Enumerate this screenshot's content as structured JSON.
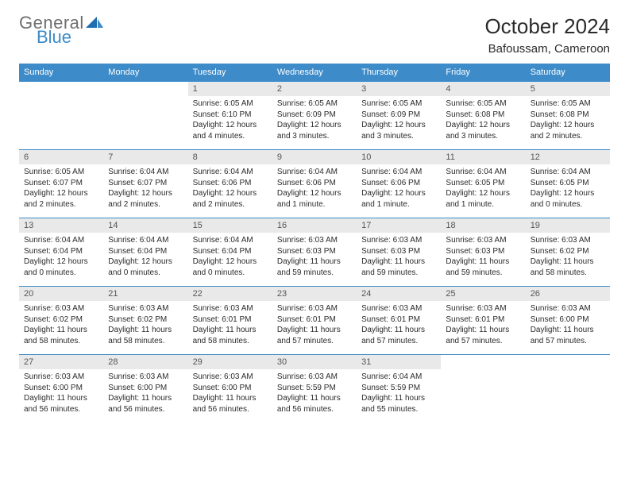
{
  "brand": {
    "word1": "General",
    "word2": "Blue",
    "word1_color": "#6f6f6f",
    "word2_color": "#3d8bc8"
  },
  "title": "October 2024",
  "location": "Bafoussam, Cameroon",
  "colors": {
    "header_bg": "#3d8bc8",
    "header_text": "#ffffff",
    "daynum_bg": "#e9e9e9",
    "daynum_text": "#555555",
    "rule": "#3d8bc8",
    "body_text": "#2b2b2b",
    "page_bg": "#ffffff"
  },
  "day_headers": [
    "Sunday",
    "Monday",
    "Tuesday",
    "Wednesday",
    "Thursday",
    "Friday",
    "Saturday"
  ],
  "weeks": [
    [
      {
        "n": "",
        "lines": []
      },
      {
        "n": "",
        "lines": []
      },
      {
        "n": "1",
        "lines": [
          "Sunrise: 6:05 AM",
          "Sunset: 6:10 PM",
          "Daylight: 12 hours",
          "and 4 minutes."
        ]
      },
      {
        "n": "2",
        "lines": [
          "Sunrise: 6:05 AM",
          "Sunset: 6:09 PM",
          "Daylight: 12 hours",
          "and 3 minutes."
        ]
      },
      {
        "n": "3",
        "lines": [
          "Sunrise: 6:05 AM",
          "Sunset: 6:09 PM",
          "Daylight: 12 hours",
          "and 3 minutes."
        ]
      },
      {
        "n": "4",
        "lines": [
          "Sunrise: 6:05 AM",
          "Sunset: 6:08 PM",
          "Daylight: 12 hours",
          "and 3 minutes."
        ]
      },
      {
        "n": "5",
        "lines": [
          "Sunrise: 6:05 AM",
          "Sunset: 6:08 PM",
          "Daylight: 12 hours",
          "and 2 minutes."
        ]
      }
    ],
    [
      {
        "n": "6",
        "lines": [
          "Sunrise: 6:05 AM",
          "Sunset: 6:07 PM",
          "Daylight: 12 hours",
          "and 2 minutes."
        ]
      },
      {
        "n": "7",
        "lines": [
          "Sunrise: 6:04 AM",
          "Sunset: 6:07 PM",
          "Daylight: 12 hours",
          "and 2 minutes."
        ]
      },
      {
        "n": "8",
        "lines": [
          "Sunrise: 6:04 AM",
          "Sunset: 6:06 PM",
          "Daylight: 12 hours",
          "and 2 minutes."
        ]
      },
      {
        "n": "9",
        "lines": [
          "Sunrise: 6:04 AM",
          "Sunset: 6:06 PM",
          "Daylight: 12 hours",
          "and 1 minute."
        ]
      },
      {
        "n": "10",
        "lines": [
          "Sunrise: 6:04 AM",
          "Sunset: 6:06 PM",
          "Daylight: 12 hours",
          "and 1 minute."
        ]
      },
      {
        "n": "11",
        "lines": [
          "Sunrise: 6:04 AM",
          "Sunset: 6:05 PM",
          "Daylight: 12 hours",
          "and 1 minute."
        ]
      },
      {
        "n": "12",
        "lines": [
          "Sunrise: 6:04 AM",
          "Sunset: 6:05 PM",
          "Daylight: 12 hours",
          "and 0 minutes."
        ]
      }
    ],
    [
      {
        "n": "13",
        "lines": [
          "Sunrise: 6:04 AM",
          "Sunset: 6:04 PM",
          "Daylight: 12 hours",
          "and 0 minutes."
        ]
      },
      {
        "n": "14",
        "lines": [
          "Sunrise: 6:04 AM",
          "Sunset: 6:04 PM",
          "Daylight: 12 hours",
          "and 0 minutes."
        ]
      },
      {
        "n": "15",
        "lines": [
          "Sunrise: 6:04 AM",
          "Sunset: 6:04 PM",
          "Daylight: 12 hours",
          "and 0 minutes."
        ]
      },
      {
        "n": "16",
        "lines": [
          "Sunrise: 6:03 AM",
          "Sunset: 6:03 PM",
          "Daylight: 11 hours",
          "and 59 minutes."
        ]
      },
      {
        "n": "17",
        "lines": [
          "Sunrise: 6:03 AM",
          "Sunset: 6:03 PM",
          "Daylight: 11 hours",
          "and 59 minutes."
        ]
      },
      {
        "n": "18",
        "lines": [
          "Sunrise: 6:03 AM",
          "Sunset: 6:03 PM",
          "Daylight: 11 hours",
          "and 59 minutes."
        ]
      },
      {
        "n": "19",
        "lines": [
          "Sunrise: 6:03 AM",
          "Sunset: 6:02 PM",
          "Daylight: 11 hours",
          "and 58 minutes."
        ]
      }
    ],
    [
      {
        "n": "20",
        "lines": [
          "Sunrise: 6:03 AM",
          "Sunset: 6:02 PM",
          "Daylight: 11 hours",
          "and 58 minutes."
        ]
      },
      {
        "n": "21",
        "lines": [
          "Sunrise: 6:03 AM",
          "Sunset: 6:02 PM",
          "Daylight: 11 hours",
          "and 58 minutes."
        ]
      },
      {
        "n": "22",
        "lines": [
          "Sunrise: 6:03 AM",
          "Sunset: 6:01 PM",
          "Daylight: 11 hours",
          "and 58 minutes."
        ]
      },
      {
        "n": "23",
        "lines": [
          "Sunrise: 6:03 AM",
          "Sunset: 6:01 PM",
          "Daylight: 11 hours",
          "and 57 minutes."
        ]
      },
      {
        "n": "24",
        "lines": [
          "Sunrise: 6:03 AM",
          "Sunset: 6:01 PM",
          "Daylight: 11 hours",
          "and 57 minutes."
        ]
      },
      {
        "n": "25",
        "lines": [
          "Sunrise: 6:03 AM",
          "Sunset: 6:01 PM",
          "Daylight: 11 hours",
          "and 57 minutes."
        ]
      },
      {
        "n": "26",
        "lines": [
          "Sunrise: 6:03 AM",
          "Sunset: 6:00 PM",
          "Daylight: 11 hours",
          "and 57 minutes."
        ]
      }
    ],
    [
      {
        "n": "27",
        "lines": [
          "Sunrise: 6:03 AM",
          "Sunset: 6:00 PM",
          "Daylight: 11 hours",
          "and 56 minutes."
        ]
      },
      {
        "n": "28",
        "lines": [
          "Sunrise: 6:03 AM",
          "Sunset: 6:00 PM",
          "Daylight: 11 hours",
          "and 56 minutes."
        ]
      },
      {
        "n": "29",
        "lines": [
          "Sunrise: 6:03 AM",
          "Sunset: 6:00 PM",
          "Daylight: 11 hours",
          "and 56 minutes."
        ]
      },
      {
        "n": "30",
        "lines": [
          "Sunrise: 6:03 AM",
          "Sunset: 5:59 PM",
          "Daylight: 11 hours",
          "and 56 minutes."
        ]
      },
      {
        "n": "31",
        "lines": [
          "Sunrise: 6:04 AM",
          "Sunset: 5:59 PM",
          "Daylight: 11 hours",
          "and 55 minutes."
        ]
      },
      {
        "n": "",
        "lines": []
      },
      {
        "n": "",
        "lines": []
      }
    ]
  ]
}
